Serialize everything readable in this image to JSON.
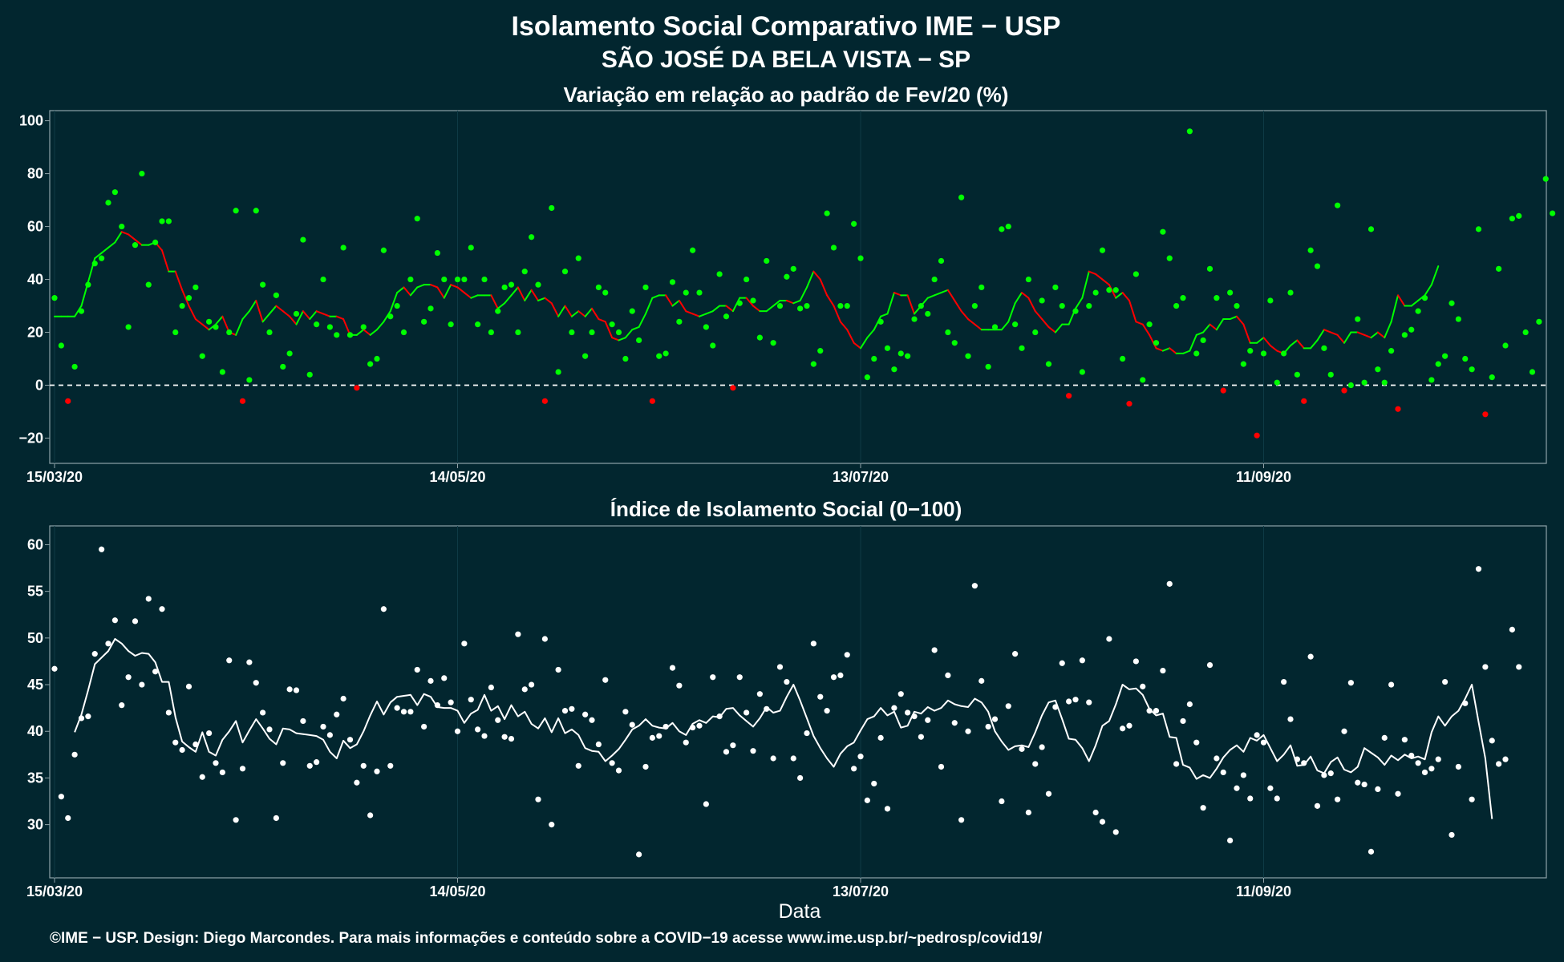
{
  "title_line1": "Isolamento Social Comparativo IME − USP",
  "title_line2": "SÃO JOSÉ DA BELA VISTA − SP",
  "x_label": "Data",
  "footer": "©IME − USP. Design: Diego Marcondes. Para mais informações e conteúdo sobre a COVID−19 acesse www.ime.usp.br/~pedrosp/covid19/",
  "colors": {
    "background": "#02262f",
    "positive": "#00ff00",
    "negative": "#ff0000",
    "index": "#ffffff",
    "panel_border": "#8fa3a8"
  },
  "chart_data": [
    {
      "type": "scatter",
      "title": "Variação em relação ao padrão de Fev/20 (%)",
      "x_start": "15/03/20",
      "x_ticks": [
        "15/03/20",
        "14/05/20",
        "13/07/20",
        "11/09/20"
      ],
      "x_tick_offsets_days": [
        0,
        60,
        120,
        180
      ],
      "y_ticks": [
        "−20",
        "0",
        "20",
        "40",
        "60",
        "80",
        "100"
      ],
      "ylim": [
        -25,
        102
      ],
      "reference_line": 0,
      "series": [
        {
          "kind": "points",
          "values": [
            33,
            15,
            -6,
            7,
            28,
            38,
            46,
            48,
            69,
            73,
            60,
            22,
            53,
            80,
            38,
            54,
            62,
            62,
            20,
            30,
            33,
            37,
            11,
            24,
            22,
            5,
            20,
            66,
            -6,
            2,
            66,
            38,
            20,
            34,
            7,
            12,
            27,
            55,
            4,
            23,
            40,
            22,
            19,
            52,
            19,
            -1,
            22,
            8,
            10,
            51,
            26,
            30,
            20,
            40,
            63,
            24,
            29,
            50,
            40,
            23,
            40,
            40,
            52,
            23,
            40,
            20,
            28,
            37,
            38,
            20,
            43,
            56,
            38,
            -6,
            67,
            5,
            43,
            20,
            48,
            11,
            20,
            37,
            35,
            23,
            20,
            10,
            28,
            17,
            37,
            -6,
            11,
            12,
            39,
            24,
            35,
            51,
            35,
            22,
            15,
            42,
            26,
            -1,
            31,
            40,
            32,
            18,
            47,
            16,
            30,
            41,
            44,
            29,
            30,
            8,
            13,
            65,
            52,
            30,
            30,
            61,
            48,
            3,
            10,
            24,
            14,
            6,
            12,
            11,
            25,
            30,
            27,
            40,
            47,
            20,
            16,
            71,
            11,
            30,
            37,
            7,
            22,
            59,
            60,
            23,
            14,
            40,
            20,
            32,
            8,
            37,
            30,
            -4,
            28,
            5,
            30,
            35,
            51,
            36,
            36,
            10,
            -7,
            42,
            2,
            23,
            16,
            58,
            48,
            30,
            33,
            96,
            12,
            17,
            44,
            33,
            -2,
            35,
            30,
            8,
            13,
            -19,
            12,
            32,
            1,
            12,
            35,
            4,
            -6,
            51,
            45,
            14,
            4,
            68,
            -2,
            0,
            25,
            1,
            59,
            6,
            1,
            13,
            -9,
            19,
            21,
            28,
            33,
            2,
            8,
            11,
            31,
            25,
            10,
            6,
            59,
            -11,
            3,
            44,
            15,
            63,
            64,
            20,
            5,
            24,
            78,
            65
          ]
        },
        {
          "kind": "smoothed",
          "values": [
            26,
            26,
            26,
            26,
            30,
            39,
            48,
            50,
            52,
            54,
            58,
            57,
            55,
            53,
            53,
            54,
            51,
            43,
            43,
            36,
            30,
            25,
            23,
            21,
            23,
            26,
            20,
            19,
            25,
            28,
            32,
            24,
            27,
            30,
            28,
            26,
            23,
            28,
            25,
            28,
            27,
            26,
            26,
            25,
            19,
            19,
            21,
            19,
            21,
            24,
            28,
            35,
            37,
            34,
            37,
            38,
            38,
            37,
            33,
            38,
            37,
            35,
            33,
            34,
            34,
            34,
            29,
            31,
            34,
            37,
            32,
            36,
            32,
            33,
            31,
            26,
            30,
            26,
            28,
            26,
            29,
            25,
            24,
            18,
            17,
            18,
            21,
            22,
            27,
            33,
            34,
            34,
            30,
            32,
            28,
            27,
            26,
            27,
            28,
            30,
            30,
            28,
            33,
            33,
            30,
            28,
            28,
            30,
            32,
            32,
            31,
            32,
            37,
            43,
            40,
            34,
            30,
            24,
            21,
            16,
            14,
            18,
            21,
            26,
            27,
            35,
            34,
            34,
            27,
            30,
            33,
            34,
            35,
            36,
            32,
            28,
            25,
            23,
            21,
            21,
            21,
            21,
            24,
            31,
            35,
            33,
            28,
            25,
            22,
            20,
            23,
            23,
            29,
            33,
            43,
            42,
            40,
            38,
            33,
            35,
            32,
            24,
            23,
            19,
            14,
            13,
            14,
            12,
            12,
            13,
            19,
            20,
            23,
            21,
            25,
            25,
            26,
            23,
            16,
            16,
            18,
            15,
            13,
            12,
            15,
            17,
            14,
            14,
            17,
            21,
            20,
            19,
            16,
            20,
            20,
            19,
            18,
            20,
            18,
            24,
            34,
            30,
            30,
            32,
            34,
            38,
            45
          ]
        }
      ]
    },
    {
      "type": "scatter",
      "title": "Índice de Isolamento Social (0−100)",
      "x_start": "15/03/20",
      "x_ticks": [
        "15/03/20",
        "14/05/20",
        "13/07/20",
        "11/09/20"
      ],
      "x_tick_offsets_days": [
        0,
        60,
        120,
        180
      ],
      "y_ticks": [
        "30",
        "35",
        "40",
        "45",
        "50",
        "55",
        "60"
      ],
      "ylim": [
        25.5,
        61.5
      ],
      "series": [
        {
          "kind": "points",
          "values": [
            46.7,
            33,
            30.7,
            37.5,
            41.4,
            41.6,
            48.3,
            59.5,
            49.4,
            51.9,
            42.8,
            45.8,
            51.8,
            45,
            54.2,
            46.4,
            53.1,
            42,
            38.8,
            38,
            44.8,
            38.6,
            35.1,
            39.8,
            36.6,
            35.6,
            47.6,
            30.5,
            36,
            47.4,
            45.2,
            42,
            40.2,
            30.7,
            36.6,
            44.5,
            44.4,
            41.1,
            36.3,
            36.7,
            40.5,
            39.6,
            41.8,
            43.5,
            39.1,
            34.5,
            36.3,
            31,
            35.7,
            53.1,
            36.3,
            42.5,
            42.1,
            42.1,
            46.6,
            40.5,
            45.4,
            42.8,
            45.7,
            43.1,
            40,
            49.4,
            43.4,
            40.2,
            39.5,
            44.7,
            41.2,
            39.4,
            39.2,
            50.4,
            44.5,
            45,
            32.7,
            49.9,
            30,
            46.6,
            42.2,
            42.4,
            36.3,
            41.8,
            41.2,
            38.6,
            45.5,
            36.6,
            35.8,
            42.1,
            40.7,
            26.8,
            36.2,
            39.3,
            39.5,
            40.5,
            46.8,
            44.9,
            38.8,
            40.4,
            40.6,
            32.2,
            45.8,
            41.6,
            37.8,
            38.5,
            45.8,
            42,
            37.9,
            44,
            42.4,
            37.1,
            46.9,
            45.3,
            37.1,
            35,
            39.8,
            49.4,
            43.7,
            42.2,
            45.8,
            46,
            48.2,
            36,
            37.3,
            32.6,
            34.4,
            39.3,
            31.7,
            42.5,
            44,
            42,
            41.6,
            39.4,
            41.2,
            48.7,
            36.2,
            46,
            40.9,
            30.5,
            40,
            55.6,
            45.4,
            40.5,
            41.3,
            32.5,
            42.7,
            48.3,
            38.1,
            31.3,
            36.5,
            38.3,
            33.3,
            42.6,
            47.3,
            43.2,
            43.4,
            47.6,
            43.1,
            31.3,
            30.3,
            49.9,
            29.2,
            40.3,
            40.6,
            47.5,
            44.8,
            42.2,
            42.2,
            46.5,
            55.8,
            36.5,
            41.1,
            42.9,
            38.8,
            31.8,
            47.1,
            37.1,
            35.6,
            28.3,
            33.9,
            35.3,
            32.8,
            39.6,
            38.8,
            33.9,
            32.8,
            45.3,
            41.3,
            37,
            36.6,
            48,
            32,
            35.3,
            35.5,
            32.7,
            40,
            45.2,
            34.5,
            34.3,
            27.1,
            33.8,
            39.3,
            45,
            33.3,
            39.1,
            37.4,
            36.6,
            35.6,
            36,
            37,
            45.3,
            28.9,
            36.2,
            43,
            32.7,
            57.4,
            46.9,
            39,
            36.5,
            37,
            50.9,
            46.9
          ]
        },
        {
          "kind": "smoothed",
          "start_offset_days": 3,
          "values": [
            39.9,
            41.8,
            44.4,
            47.2,
            47.9,
            48.6,
            49.9,
            49.4,
            48.6,
            48.1,
            48.4,
            48.3,
            47.4,
            45.3,
            45.3,
            41.5,
            38.9,
            38.3,
            37.8,
            39.9,
            37.8,
            37.4,
            39.1,
            40,
            41.1,
            38.8,
            40.1,
            41.3,
            40.3,
            39.2,
            38.6,
            40.3,
            40.2,
            39.8,
            39.7,
            39.6,
            39.5,
            39.1,
            37.8,
            37.1,
            39,
            38.2,
            38.6,
            40,
            41.7,
            43.2,
            41.8,
            43.1,
            43.7,
            43.8,
            43.9,
            42.8,
            44,
            43.7,
            42.6,
            42.5,
            42.5,
            42.2,
            40.9,
            41.9,
            42.3,
            43.9,
            42.2,
            42.7,
            41.3,
            42.8,
            41.6,
            42.1,
            40.8,
            40.3,
            41.4,
            39.9,
            41.4,
            39.8,
            40.2,
            39.6,
            38.2,
            37.9,
            37.8,
            36.8,
            37.4,
            38.1,
            39.1,
            40.2,
            40.6,
            41.3,
            40.6,
            40.4,
            40.3,
            40.9,
            40,
            39.6,
            40.8,
            41.2,
            40.9,
            41.6,
            41.5,
            42.4,
            42.5,
            41.7,
            41.1,
            40.5,
            41.4,
            42.6,
            42,
            42.2,
            43.7,
            45,
            43.3,
            41.4,
            39.5,
            38.2,
            37.1,
            36.2,
            37.6,
            38.4,
            38.8,
            40.1,
            41.3,
            41.6,
            42.5,
            41.7,
            42.1,
            40.4,
            40.6,
            42.1,
            41.9,
            42.6,
            42.2,
            42.5,
            43.3,
            42.9,
            42.7,
            42.6,
            43.5,
            43.1,
            42.1,
            40,
            38.9,
            38,
            38.4,
            38.5,
            38.3,
            39.9,
            41.7,
            43.1,
            43.3,
            41.3,
            39.2,
            39.1,
            38.2,
            36.8,
            38.5,
            40.6,
            41.1,
            42.9,
            45,
            44.5,
            44.6,
            43.9,
            42.4,
            41.7,
            41.9,
            39.4,
            39.3,
            36.4,
            36.1,
            34.9,
            35.3,
            35,
            36,
            37.2,
            38,
            38.5,
            37.8,
            39.3,
            39,
            39.6,
            38.2,
            36.8,
            37.5,
            38.5,
            36.3,
            36.4,
            37.3,
            35.8,
            35.5,
            36.7,
            37.2,
            35.9,
            35.6,
            36.2,
            38.2,
            37.7,
            37.2,
            36.4,
            37.4,
            36.9,
            37.5,
            37.1,
            37.3,
            37,
            39.9,
            41.6,
            40.6,
            41.6,
            42.2,
            43.5,
            45,
            41,
            37.1,
            30.6
          ]
        }
      ]
    }
  ]
}
